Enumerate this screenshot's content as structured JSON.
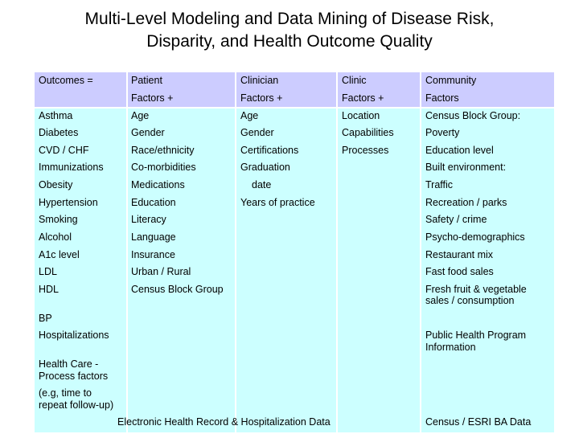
{
  "title": {
    "line1": "Multi-Level Modeling and Data Mining of Disease Risk,",
    "line2": "Disparity, and Health Outcome Quality"
  },
  "table": {
    "header": {
      "outcomes": "Outcomes =",
      "patient": [
        "Patient",
        "Factors  +"
      ],
      "clinician": [
        "Clinician",
        "Factors  +"
      ],
      "clinic": [
        "Clinic",
        "Factors  +"
      ],
      "community": [
        "Community",
        "Factors"
      ]
    },
    "outcomes": [
      "Asthma",
      "Diabetes",
      "CVD / CHF",
      "Immunizations",
      "Obesity",
      "Hypertension",
      "Smoking",
      "Alcohol",
      "A1c level",
      "LDL",
      "HDL",
      "BP",
      "Hospitalizations",
      "Health Care -",
      "Process factors",
      "(e.g, time to",
      "repeat follow-up)"
    ],
    "patient": [
      "Age",
      "Gender",
      "Race/ethnicity",
      "Co-morbidities",
      "Medications",
      "Education",
      "Literacy",
      "Language",
      "Insurance",
      "Urban / Rural",
      "Census Block Group"
    ],
    "clinician": [
      "Age",
      "Gender",
      "Certifications",
      "Graduation",
      "date",
      "Years of practice"
    ],
    "clinic": [
      "Location",
      "Capabilities",
      "Processes"
    ],
    "community": [
      "Census  Block Group:",
      "Poverty",
      "Education level",
      "Built environment:",
      "Traffic",
      "Recreation / parks",
      "Safety / crime",
      "Psycho-demographics",
      "Restaurant mix",
      "Fast food sales",
      "Fresh fruit & vegetable",
      "sales / consumption",
      "Public Health Program",
      "Information"
    ],
    "footer": {
      "ehr": "Electronic Health Record & Hospitalization Data",
      "census": "Census / ESRI BA Data"
    }
  }
}
